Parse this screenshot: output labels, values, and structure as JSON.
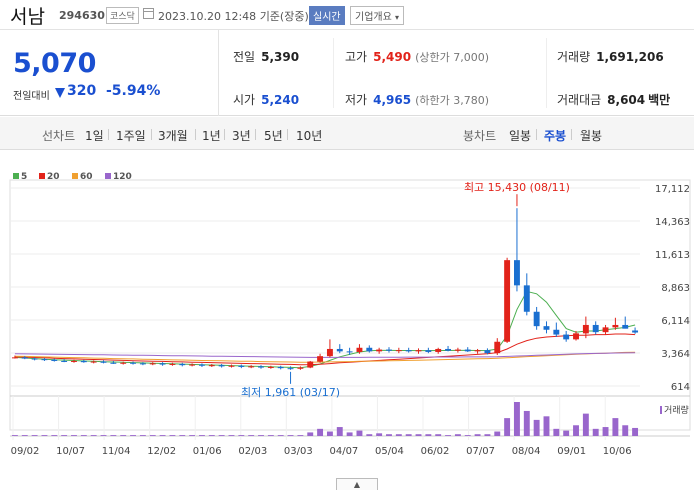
{
  "header": {
    "name": "서남",
    "code": "294630",
    "market": "코스닥",
    "datetime": "2023.10.20 12:48",
    "basis": "기준(장중)",
    "realtime_button": "실시간",
    "company_button": "기업개요"
  },
  "summary": {
    "current_price": "5,070",
    "compare_label": "전일대비",
    "change": "320",
    "change_rate": "-5.94%",
    "prev_close_label": "전일",
    "prev_close": "5,390",
    "high_label": "고가",
    "high": "5,490",
    "upper_limit": "(상한가 7,000)",
    "volume_label": "거래량",
    "volume": "1,691,206",
    "open_label": "시가",
    "open": "5,240",
    "low_label": "저가",
    "low": "4,965",
    "lower_limit": "(하한가 3,780)",
    "amount_label": "거래대금",
    "amount": "8,604",
    "amount_unit": "백만"
  },
  "toolbar": {
    "line_label": "선차트",
    "periods": [
      "1일",
      "1주일",
      "3개월",
      "1년",
      "3년",
      "5년",
      "10년"
    ],
    "candle_label": "봉차트",
    "candle_options": [
      "일봉",
      "주봉",
      "월봉"
    ],
    "selected_candle": "주봉"
  },
  "chart_data": {
    "type": "candlestick",
    "legend": [
      {
        "name": "5",
        "color": "#4caf50"
      },
      {
        "name": "20",
        "color": "#e2231a"
      },
      {
        "name": "60",
        "color": "#f0a030"
      },
      {
        "name": "120",
        "color": "#9966cc"
      }
    ],
    "yticks": [
      614,
      3364,
      6114,
      8863,
      11613,
      14363,
      17112
    ],
    "ytick_labels": [
      "614",
      "3,364",
      "6,114",
      "8,863",
      "11,613",
      "14,363",
      "17,112"
    ],
    "ylim": [
      614,
      17112
    ],
    "xticks": [
      "09/02",
      "10/07",
      "11/04",
      "12/02",
      "01/06",
      "02/03",
      "03/03",
      "04/07",
      "05/04",
      "06/02",
      "07/07",
      "08/04",
      "09/01",
      "10/06"
    ],
    "candles": [
      {
        "o": 3000,
        "h": 3150,
        "l": 2900,
        "c": 3000
      },
      {
        "o": 3000,
        "h": 3100,
        "l": 2850,
        "c": 2900
      },
      {
        "o": 2900,
        "h": 3000,
        "l": 2750,
        "c": 2850
      },
      {
        "o": 2850,
        "h": 2950,
        "l": 2700,
        "c": 2800
      },
      {
        "o": 2800,
        "h": 2900,
        "l": 2650,
        "c": 2700
      },
      {
        "o": 2700,
        "h": 2850,
        "l": 2600,
        "c": 2650
      },
      {
        "o": 2650,
        "h": 2800,
        "l": 2550,
        "c": 2700
      },
      {
        "o": 2700,
        "h": 2800,
        "l": 2550,
        "c": 2600
      },
      {
        "o": 2600,
        "h": 2750,
        "l": 2500,
        "c": 2650
      },
      {
        "o": 2650,
        "h": 2750,
        "l": 2500,
        "c": 2550
      },
      {
        "o": 2550,
        "h": 2700,
        "l": 2450,
        "c": 2500
      },
      {
        "o": 2500,
        "h": 2650,
        "l": 2400,
        "c": 2550
      },
      {
        "o": 2550,
        "h": 2650,
        "l": 2400,
        "c": 2500
      },
      {
        "o": 2500,
        "h": 2600,
        "l": 2350,
        "c": 2450
      },
      {
        "o": 2450,
        "h": 2600,
        "l": 2350,
        "c": 2500
      },
      {
        "o": 2500,
        "h": 2600,
        "l": 2300,
        "c": 2400
      },
      {
        "o": 2400,
        "h": 2550,
        "l": 2300,
        "c": 2450
      },
      {
        "o": 2450,
        "h": 2550,
        "l": 2250,
        "c": 2350
      },
      {
        "o": 2350,
        "h": 2500,
        "l": 2250,
        "c": 2400
      },
      {
        "o": 2400,
        "h": 2500,
        "l": 2200,
        "c": 2300
      },
      {
        "o": 2300,
        "h": 2450,
        "l": 2200,
        "c": 2350
      },
      {
        "o": 2350,
        "h": 2450,
        "l": 2150,
        "c": 2250
      },
      {
        "o": 2250,
        "h": 2400,
        "l": 2150,
        "c": 2300
      },
      {
        "o": 2300,
        "h": 2400,
        "l": 2100,
        "c": 2200
      },
      {
        "o": 2200,
        "h": 2350,
        "l": 2100,
        "c": 2250
      },
      {
        "o": 2250,
        "h": 2350,
        "l": 2050,
        "c": 2150
      },
      {
        "o": 2150,
        "h": 2300,
        "l": 2050,
        "c": 2200
      },
      {
        "o": 2200,
        "h": 2300,
        "l": 2000,
        "c": 2100
      },
      {
        "o": 2100,
        "h": 2250,
        "l": 1961,
        "c": 2050
      },
      {
        "o": 2050,
        "h": 2250,
        "l": 1961,
        "c": 2150
      },
      {
        "o": 2150,
        "h": 2700,
        "l": 2100,
        "c": 2650
      },
      {
        "o": 2650,
        "h": 3300,
        "l": 2550,
        "c": 3100
      },
      {
        "o": 3100,
        "h": 4500,
        "l": 3000,
        "c": 3700
      },
      {
        "o": 3700,
        "h": 4100,
        "l": 3350,
        "c": 3500
      },
      {
        "o": 3500,
        "h": 3800,
        "l": 3200,
        "c": 3450
      },
      {
        "o": 3450,
        "h": 4100,
        "l": 3300,
        "c": 3800
      },
      {
        "o": 3800,
        "h": 4000,
        "l": 3400,
        "c": 3500
      },
      {
        "o": 3500,
        "h": 3800,
        "l": 3300,
        "c": 3650
      },
      {
        "o": 3650,
        "h": 3850,
        "l": 3400,
        "c": 3550
      },
      {
        "o": 3550,
        "h": 3800,
        "l": 3350,
        "c": 3600
      },
      {
        "o": 3600,
        "h": 3800,
        "l": 3400,
        "c": 3500
      },
      {
        "o": 3500,
        "h": 3750,
        "l": 3300,
        "c": 3600
      },
      {
        "o": 3600,
        "h": 3800,
        "l": 3350,
        "c": 3450
      },
      {
        "o": 3450,
        "h": 3800,
        "l": 3300,
        "c": 3700
      },
      {
        "o": 3700,
        "h": 3950,
        "l": 3500,
        "c": 3550
      },
      {
        "o": 3550,
        "h": 3800,
        "l": 3400,
        "c": 3650
      },
      {
        "o": 3650,
        "h": 3850,
        "l": 3450,
        "c": 3500
      },
      {
        "o": 3500,
        "h": 3700,
        "l": 3300,
        "c": 3600
      },
      {
        "o": 3600,
        "h": 3750,
        "l": 3250,
        "c": 3350
      },
      {
        "o": 3350,
        "h": 4600,
        "l": 3200,
        "c": 4300
      },
      {
        "o": 4300,
        "h": 11300,
        "l": 4200,
        "c": 11100
      },
      {
        "o": 11100,
        "h": 15430,
        "l": 8500,
        "c": 9000
      },
      {
        "o": 9000,
        "h": 10000,
        "l": 6500,
        "c": 6800
      },
      {
        "o": 6800,
        "h": 7200,
        "l": 5300,
        "c": 5600
      },
      {
        "o": 5600,
        "h": 6000,
        "l": 5000,
        "c": 5300
      },
      {
        "o": 5300,
        "h": 5900,
        "l": 4700,
        "c": 4900
      },
      {
        "o": 4900,
        "h": 5200,
        "l": 4300,
        "c": 4500
      },
      {
        "o": 4500,
        "h": 5200,
        "l": 4400,
        "c": 5000
      },
      {
        "o": 5000,
        "h": 6400,
        "l": 4600,
        "c": 5700
      },
      {
        "o": 5700,
        "h": 6000,
        "l": 4900,
        "c": 5100
      },
      {
        "o": 5100,
        "h": 5700,
        "l": 4900,
        "c": 5500
      },
      {
        "o": 5500,
        "h": 6300,
        "l": 5300,
        "c": 5700
      },
      {
        "o": 5700,
        "h": 6400,
        "l": 5400,
        "c": 5390
      },
      {
        "o": 5240,
        "h": 5490,
        "l": 4965,
        "c": 5070
      }
    ],
    "volumes": [
      1,
      1,
      1,
      1,
      1,
      1,
      1,
      1,
      1,
      1,
      1,
      1,
      1,
      1,
      1,
      1,
      1,
      1,
      1,
      1,
      1,
      1,
      1,
      1,
      1,
      1,
      1,
      1,
      1,
      1,
      4,
      8,
      5,
      10,
      4,
      6,
      2,
      3,
      2,
      2,
      2,
      2,
      2,
      2,
      1,
      2,
      1,
      2,
      2,
      5,
      20,
      38,
      28,
      18,
      22,
      8,
      6,
      12,
      25,
      8,
      10,
      20,
      12,
      9
    ],
    "ma": {
      "5": [
        3000,
        2950,
        2900,
        2850,
        2800,
        2770,
        2740,
        2700,
        2670,
        2640,
        2610,
        2590,
        2560,
        2540,
        2510,
        2490,
        2460,
        2440,
        2410,
        2390,
        2360,
        2340,
        2310,
        2290,
        2260,
        2240,
        2210,
        2190,
        2160,
        2140,
        2250,
        2450,
        2750,
        3050,
        3250,
        3450,
        3550,
        3580,
        3580,
        3570,
        3570,
        3560,
        3560,
        3570,
        3570,
        3580,
        3580,
        3570,
        3560,
        3700,
        4800,
        7000,
        8500,
        8300,
        7600,
        6500,
        5400,
        5100,
        5200,
        5200,
        5300,
        5400,
        5500,
        5700
      ],
      "20": [
        3050,
        3020,
        2990,
        2960,
        2930,
        2900,
        2870,
        2850,
        2820,
        2800,
        2770,
        2750,
        2720,
        2700,
        2680,
        2660,
        2640,
        2620,
        2600,
        2580,
        2560,
        2540,
        2520,
        2500,
        2480,
        2460,
        2450,
        2430,
        2410,
        2390,
        2400,
        2430,
        2480,
        2550,
        2600,
        2650,
        2700,
        2750,
        2800,
        2850,
        2900,
        2950,
        3000,
        3050,
        3100,
        3150,
        3200,
        3250,
        3300,
        3400,
        3700,
        4100,
        4400,
        4600,
        4700,
        4750,
        4800,
        4850,
        4850,
        4900,
        4900,
        4950,
        4950,
        4900
      ],
      "60": [
        3100,
        3080,
        3060,
        3040,
        3020,
        3000,
        2980,
        2960,
        2940,
        2920,
        2900,
        2880,
        2870,
        2850,
        2830,
        2810,
        2790,
        2780,
        2760,
        2740,
        2730,
        2710,
        2700,
        2680,
        2670,
        2650,
        2640,
        2620,
        2610,
        2600,
        2600,
        2610,
        2620,
        2640,
        2650,
        2670,
        2680,
        2700,
        2710,
        2730,
        2750,
        2760,
        2780,
        2800,
        2820,
        2840,
        2860,
        2880,
        2900,
        2920,
        2960,
        3010,
        3060,
        3100,
        3140,
        3180,
        3220,
        3260,
        3290,
        3320,
        3350,
        3380,
        3410,
        3430
      ],
      "120": [
        3300,
        3290,
        3280,
        3270,
        3260,
        3250,
        3240,
        3230,
        3220,
        3210,
        3200,
        3190,
        3180,
        3170,
        3160,
        3150,
        3140,
        3130,
        3120,
        3110,
        3100,
        3090,
        3080,
        3070,
        3060,
        3050,
        3040,
        3030,
        3020,
        3010,
        3000,
        3000,
        3000,
        3000,
        3000,
        3000,
        3010,
        3010,
        3010,
        3010,
        3020,
        3020,
        3020,
        3030,
        3030,
        3030,
        3040,
        3040,
        3040,
        3050,
        3080,
        3110,
        3140,
        3170,
        3200,
        3230,
        3260,
        3290,
        3310,
        3330,
        3350,
        3360,
        3370,
        3380
      ]
    },
    "annotations": {
      "max_label": "최고 15,430 (08/11)",
      "min_label": "최저 1,961 (03/17)"
    },
    "volume_label": "거래량",
    "up_color": "#e2231a",
    "down_color": "#1a6fd0"
  }
}
